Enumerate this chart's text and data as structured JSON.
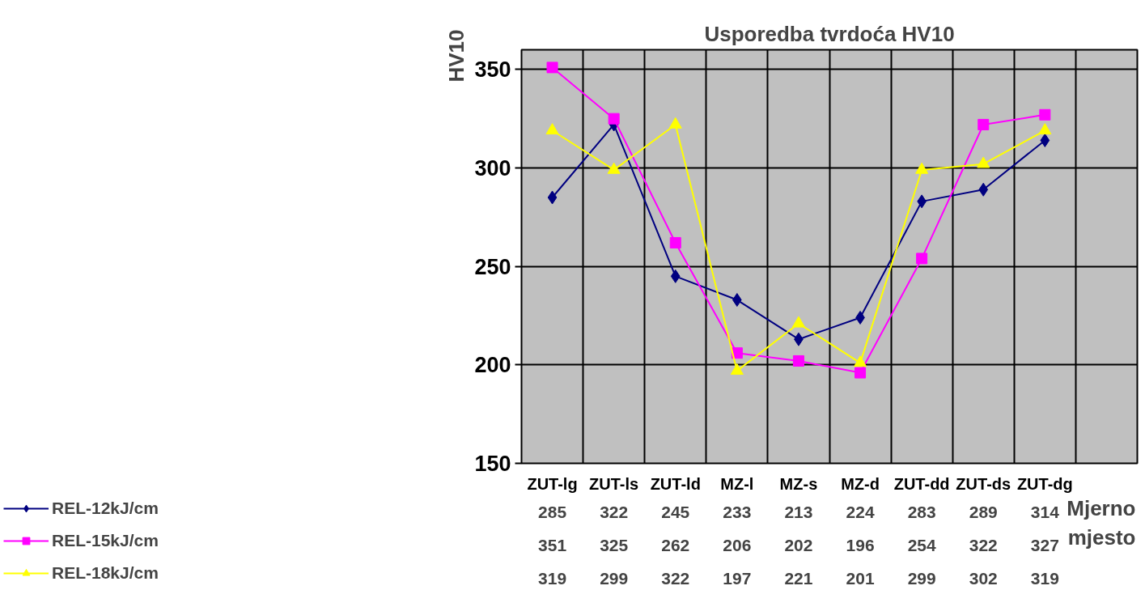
{
  "chart_data": {
    "type": "line",
    "title": "Usporedba tvrdoća HV10",
    "xlabel": "Mjerno mjesto",
    "ylabel": "HV10",
    "categories": [
      "ZUT-lg",
      "ZUT-ls",
      "ZUT-ld",
      "MZ-l",
      "MZ-s",
      "MZ-d",
      "ZUT-dd",
      "ZUT-ds",
      "ZUT-dg",
      null
    ],
    "series": [
      {
        "name": "REL-12kJ/cm",
        "color": "#000080",
        "marker": "diamond",
        "values": [
          285,
          322,
          245,
          233,
          213,
          224,
          283,
          289,
          314,
          null
        ]
      },
      {
        "name": "REL-15kJ/cm",
        "color": "#ff00ff",
        "marker": "square",
        "values": [
          351,
          325,
          262,
          206,
          202,
          196,
          254,
          322,
          327,
          null
        ]
      },
      {
        "name": "REL-18kJ/cm",
        "color": "#ffff00",
        "marker": "triangle",
        "values": [
          319,
          299,
          322,
          197,
          221,
          201,
          299,
          302,
          319,
          null
        ]
      }
    ],
    "ylim": [
      150,
      360
    ],
    "yticks": [
      150,
      200,
      250,
      300,
      350
    ],
    "grid": true,
    "legend": "bottom left",
    "data_labels": true,
    "line_style": "solid"
  }
}
